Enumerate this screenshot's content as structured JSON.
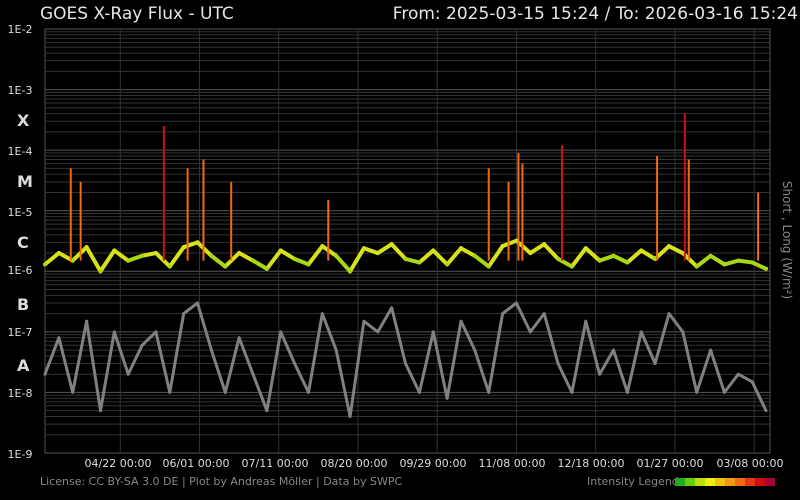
{
  "header": {
    "title": "GOES X-Ray Flux - UTC",
    "range": "From: 2025-03-15 15:24  /  To: 2026-03-16 15:24"
  },
  "footer": {
    "credits": "License: CC BY-SA 3.0 DE | Plot by Andreas Möller | Data by SWPC",
    "legend_label": "Intensity Legend"
  },
  "flare_classes": [
    {
      "label": "X",
      "color": "#d01010",
      "level": 0.0001
    },
    {
      "label": "M",
      "color": "#f06a10",
      "level": 1e-05
    },
    {
      "label": "C",
      "color": "#d6e21a",
      "level": 1e-06
    },
    {
      "label": "B",
      "color": "#58c21a",
      "level": 1e-07
    },
    {
      "label": "A",
      "color": "#18a818",
      "level": 1e-08
    }
  ],
  "legend_colors": [
    "#22aa22",
    "#66cc11",
    "#bbdd11",
    "#eeee11",
    "#f2c211",
    "#f29911",
    "#f06a10",
    "#e13a12",
    "#d01010",
    "#a8003c"
  ],
  "chart_data": {
    "type": "line",
    "title": "GOES X-Ray Flux - UTC",
    "ylabel": "Short , Long (W/m²)",
    "yscale": "log",
    "ylim": [
      1e-09,
      0.01
    ],
    "yticks": [
      "1E-2",
      "1E-3",
      "1E-4",
      "1E-5",
      "1E-6",
      "1E-7",
      "1E-8",
      "1E-9"
    ],
    "xlim": [
      "2025-03-15",
      "2026-03-16"
    ],
    "xticks": [
      {
        "date": "2025-04-22",
        "label": "04/22 00:00"
      },
      {
        "date": "2025-06-01",
        "label": "06/01 00:00"
      },
      {
        "date": "2025-07-11",
        "label": "07/11 00:00"
      },
      {
        "date": "2025-08-20",
        "label": "08/20 00:00"
      },
      {
        "date": "2025-09-29",
        "label": "09/29 00:00"
      },
      {
        "date": "2025-11-08",
        "label": "11/08 00:00"
      },
      {
        "date": "2025-12-18",
        "label": "12/18 00:00"
      },
      {
        "date": "2026-01-27",
        "label": "01/27 00:00"
      },
      {
        "date": "2026-03-08",
        "label": "03/08 00:00"
      }
    ],
    "grid": true,
    "series": [
      {
        "name": "Long",
        "color": "gradient",
        "x": [
          "2025-03-15",
          "2025-03-22",
          "2025-03-29",
          "2025-04-05",
          "2025-04-12",
          "2025-04-19",
          "2025-04-26",
          "2025-05-03",
          "2025-05-10",
          "2025-05-17",
          "2025-05-24",
          "2025-05-31",
          "2025-06-07",
          "2025-06-14",
          "2025-06-21",
          "2025-06-28",
          "2025-07-05",
          "2025-07-12",
          "2025-07-19",
          "2025-07-26",
          "2025-08-02",
          "2025-08-09",
          "2025-08-16",
          "2025-08-23",
          "2025-08-30",
          "2025-09-06",
          "2025-09-13",
          "2025-09-20",
          "2025-09-27",
          "2025-10-04",
          "2025-10-11",
          "2025-10-18",
          "2025-10-25",
          "2025-11-01",
          "2025-11-08",
          "2025-11-15",
          "2025-11-22",
          "2025-11-29",
          "2025-12-06",
          "2025-12-13",
          "2025-12-20",
          "2025-12-27",
          "2026-01-03",
          "2026-01-10",
          "2026-01-17",
          "2026-01-24",
          "2026-01-31",
          "2026-02-07",
          "2026-02-14",
          "2026-02-21",
          "2026-02-28",
          "2026-03-07",
          "2026-03-14"
        ],
        "y": [
          1.3e-06,
          2e-06,
          1.5e-06,
          2.5e-06,
          1e-06,
          2.2e-06,
          1.5e-06,
          1.8e-06,
          2e-06,
          1.2e-06,
          2.5e-06,
          3e-06,
          1.8e-06,
          1.2e-06,
          2e-06,
          1.5e-06,
          1.1e-06,
          2.2e-06,
          1.6e-06,
          1.3e-06,
          2.6e-06,
          1.8e-06,
          1e-06,
          2.4e-06,
          2e-06,
          2.8e-06,
          1.6e-06,
          1.4e-06,
          2.2e-06,
          1.3e-06,
          2.4e-06,
          1.8e-06,
          1.2e-06,
          2.6e-06,
          3.2e-06,
          2e-06,
          2.8e-06,
          1.6e-06,
          1.2e-06,
          2.4e-06,
          1.5e-06,
          1.8e-06,
          1.4e-06,
          2.2e-06,
          1.6e-06,
          2.6e-06,
          2e-06,
          1.2e-06,
          1.8e-06,
          1.3e-06,
          1.5e-06,
          1.4e-06,
          1.1e-06
        ]
      },
      {
        "name": "Short",
        "color": "#808080",
        "x": [
          "2025-03-15",
          "2025-03-22",
          "2025-03-29",
          "2025-04-05",
          "2025-04-12",
          "2025-04-19",
          "2025-04-26",
          "2025-05-03",
          "2025-05-10",
          "2025-05-17",
          "2025-05-24",
          "2025-05-31",
          "2025-06-07",
          "2025-06-14",
          "2025-06-21",
          "2025-06-28",
          "2025-07-05",
          "2025-07-12",
          "2025-07-19",
          "2025-07-26",
          "2025-08-02",
          "2025-08-09",
          "2025-08-16",
          "2025-08-23",
          "2025-08-30",
          "2025-09-06",
          "2025-09-13",
          "2025-09-20",
          "2025-09-27",
          "2025-10-04",
          "2025-10-11",
          "2025-10-18",
          "2025-10-25",
          "2025-11-01",
          "2025-11-08",
          "2025-11-15",
          "2025-11-22",
          "2025-11-29",
          "2025-12-06",
          "2025-12-13",
          "2025-12-20",
          "2025-12-27",
          "2026-01-03",
          "2026-01-10",
          "2026-01-17",
          "2026-01-24",
          "2026-01-31",
          "2026-02-07",
          "2026-02-14",
          "2026-02-21",
          "2026-02-28",
          "2026-03-07",
          "2026-03-14"
        ],
        "y": [
          2e-08,
          8e-08,
          1e-08,
          1.5e-07,
          5e-09,
          1e-07,
          2e-08,
          6e-08,
          1e-07,
          1e-08,
          2e-07,
          3e-07,
          5e-08,
          1e-08,
          8e-08,
          2e-08,
          5e-09,
          1e-07,
          3e-08,
          1e-08,
          2e-07,
          5e-08,
          4e-09,
          1.5e-07,
          1e-07,
          2.5e-07,
          3e-08,
          1e-08,
          1e-07,
          8e-09,
          1.5e-07,
          5e-08,
          1e-08,
          2e-07,
          3e-07,
          1e-07,
          2e-07,
          3e-08,
          1e-08,
          1.5e-07,
          2e-08,
          5e-08,
          1e-08,
          1e-07,
          3e-08,
          2e-07,
          1e-07,
          1e-08,
          5e-08,
          1e-08,
          2e-08,
          1.5e-08,
          5e-09
        ]
      }
    ],
    "flares": [
      {
        "date": "2025-03-28",
        "peak": 5e-05
      },
      {
        "date": "2025-04-02",
        "peak": 3e-05
      },
      {
        "date": "2025-05-14",
        "peak": 0.00025
      },
      {
        "date": "2025-05-26",
        "peak": 5e-05
      },
      {
        "date": "2025-06-03",
        "peak": 7e-05
      },
      {
        "date": "2025-06-17",
        "peak": 3e-05
      },
      {
        "date": "2025-08-05",
        "peak": 1.5e-05
      },
      {
        "date": "2025-10-25",
        "peak": 5e-05
      },
      {
        "date": "2025-11-04",
        "peak": 3e-05
      },
      {
        "date": "2025-11-09",
        "peak": 9e-05
      },
      {
        "date": "2025-11-11",
        "peak": 6e-05
      },
      {
        "date": "2025-12-01",
        "peak": 0.00012
      },
      {
        "date": "2026-01-18",
        "peak": 8e-05
      },
      {
        "date": "2026-02-01",
        "peak": 0.0004
      },
      {
        "date": "2026-02-03",
        "peak": 7e-05
      },
      {
        "date": "2026-03-10",
        "peak": 2e-05
      }
    ]
  }
}
